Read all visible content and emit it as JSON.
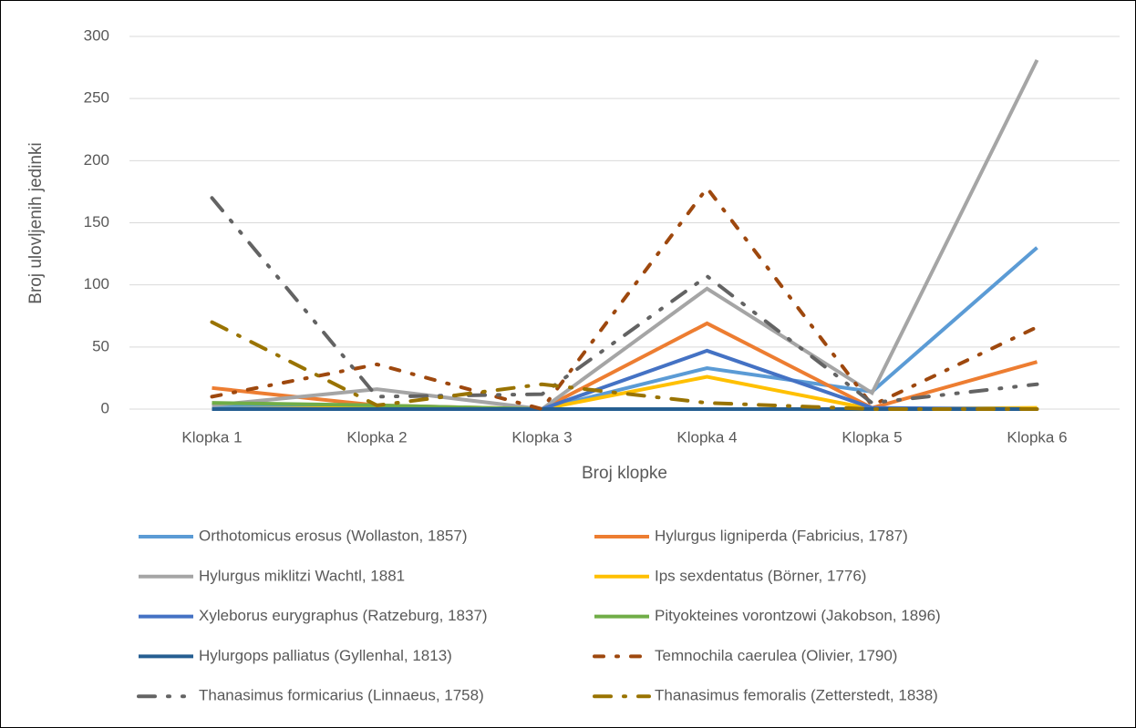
{
  "chart_data": {
    "type": "line",
    "y_axis_label": "Broj ulovljenih jedinki",
    "x_axis_label": "Broj klopke",
    "categories": [
      "Klopka 1",
      "Klopka 2",
      "Klopka 3",
      "Klopka 4",
      "Klopka 5",
      "Klopka 6"
    ],
    "ylim": [
      0,
      300
    ],
    "yticks": [
      0,
      50,
      100,
      150,
      200,
      250,
      300
    ],
    "grid": true,
    "legend": "bottom",
    "series": [
      {
        "name": "Orthotomicus erosus (Wollaston, 1857)",
        "color": "#5b9bd5",
        "dash": "solid",
        "values": [
          2,
          2,
          0,
          33,
          14,
          130
        ]
      },
      {
        "name": "Hylurgus ligniperda (Fabricius, 1787)",
        "color": "#ed7d31",
        "dash": "solid",
        "values": [
          17,
          3,
          0,
          69,
          1,
          38
        ]
      },
      {
        "name": "Hylurgus miklitzi Wachtl, 1881",
        "color": "#a5a5a5",
        "dash": "solid",
        "values": [
          3,
          16,
          0,
          97,
          13,
          281
        ]
      },
      {
        "name": "Ips sexdentatus (Börner, 1776)",
        "color": "#ffc000",
        "dash": "solid",
        "values": [
          0,
          1,
          0,
          26,
          0,
          1
        ]
      },
      {
        "name": "Xyleborus eurygraphus (Ratzeburg, 1837)",
        "color": "#4472c4",
        "dash": "solid",
        "values": [
          0,
          0,
          0,
          47,
          1,
          0
        ]
      },
      {
        "name": "Pityokteines vorontzowi (Jakobson, 1896)",
        "color": "#70ad47",
        "dash": "solid",
        "values": [
          5,
          3,
          0,
          0,
          0,
          0
        ]
      },
      {
        "name": "Hylurgops palliatus (Gyllenhal, 1813)",
        "color": "#255e91",
        "dash": "solid",
        "values": [
          0,
          0,
          0,
          0,
          0,
          0
        ]
      },
      {
        "name": "Temnochila caerulea (Olivier, 1790)",
        "color": "#9e480e",
        "dash": "dash-dot",
        "values": [
          10,
          36,
          0,
          178,
          3,
          66
        ]
      },
      {
        "name": "Thanasimus formicarius (Linnaeus, 1758)",
        "color": "#636363",
        "dash": "long-dash-dot-dot",
        "values": [
          170,
          10,
          12,
          107,
          5,
          20
        ]
      },
      {
        "name": "Thanasimus femoralis (Zetterstedt, 1838)",
        "color": "#997300",
        "dash": "long-dash-dot",
        "values": [
          70,
          3,
          20,
          5,
          0,
          0
        ]
      }
    ]
  }
}
